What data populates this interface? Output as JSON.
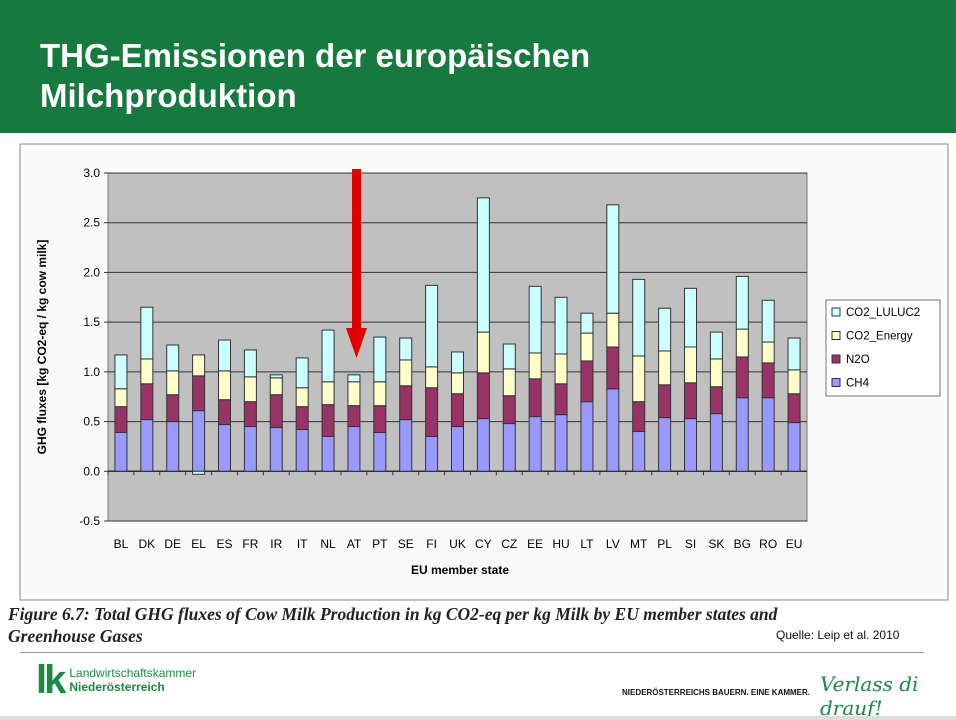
{
  "slide": {
    "title_line1": "THG-Emissionen der europäischen",
    "title_line2": "Milchproduktion",
    "caption_line1": "Figure 6.7: Total GHG fluxes of Cow Milk Production in kg CO2-eq per kg Milk by EU member states and",
    "caption_line2": "Greenhouse Gases",
    "source": "Quelle: Leip et al.  2010",
    "logo_line1": "Landwirtschaftskammer",
    "logo_line2": "Niederösterreich",
    "logo_mark": "lk",
    "slogan": "NIEDERÖSTERREICHS BAUERN. EINE KAMMER.",
    "tagline": "Verlass di drauf!"
  },
  "chart_data": {
    "type": "bar",
    "stacked": true,
    "xlabel": "EU member state",
    "ylabel": "GHG fluxes [kg CO2-eq / kg cow milk]",
    "ylim": [
      -0.5,
      3.0
    ],
    "yticks": [
      "3.0",
      "2.5",
      "2.0",
      "1.5",
      "1.0",
      "0.5",
      "0.0",
      "-0.5"
    ],
    "grid": true,
    "legend_position": "right",
    "highlight": {
      "category": "AT",
      "marker": "red down arrow"
    },
    "categories": [
      "BL",
      "DK",
      "DE",
      "EL",
      "ES",
      "FR",
      "IR",
      "IT",
      "NL",
      "AT",
      "PT",
      "SE",
      "FI",
      "UK",
      "CY",
      "CZ",
      "EE",
      "HU",
      "LT",
      "LV",
      "MT",
      "PL",
      "SI",
      "SK",
      "BG",
      "RO",
      "EU"
    ],
    "series": [
      {
        "name": "CH4",
        "color": "#9999ff",
        "values": [
          0.39,
          0.52,
          0.5,
          0.61,
          0.47,
          0.45,
          0.44,
          0.42,
          0.35,
          0.45,
          0.39,
          0.52,
          0.35,
          0.45,
          0.53,
          0.48,
          0.55,
          0.57,
          0.7,
          0.83,
          0.4,
          0.54,
          0.53,
          0.58,
          0.74,
          0.74,
          0.49
        ]
      },
      {
        "name": "N2O",
        "color": "#993366",
        "values": [
          0.26,
          0.36,
          0.27,
          0.35,
          0.25,
          0.25,
          0.33,
          0.23,
          0.32,
          0.21,
          0.27,
          0.34,
          0.49,
          0.33,
          0.46,
          0.28,
          0.38,
          0.31,
          0.41,
          0.42,
          0.3,
          0.33,
          0.36,
          0.27,
          0.41,
          0.35,
          0.29
        ]
      },
      {
        "name": "CO2_Energy",
        "color": "#ffffcc",
        "values": [
          0.18,
          0.25,
          0.24,
          0.21,
          0.29,
          0.25,
          0.17,
          0.19,
          0.23,
          0.24,
          0.24,
          0.26,
          0.21,
          0.21,
          0.41,
          0.27,
          0.26,
          0.3,
          0.28,
          0.34,
          0.46,
          0.34,
          0.36,
          0.28,
          0.28,
          0.21,
          0.24
        ]
      },
      {
        "name": "CO2_LULUC2",
        "color": "#ccffff",
        "values": [
          0.34,
          0.52,
          0.26,
          -0.03,
          0.31,
          0.27,
          0.03,
          0.3,
          0.52,
          0.07,
          0.45,
          0.22,
          0.82,
          0.21,
          1.35,
          0.25,
          0.67,
          0.57,
          0.2,
          1.09,
          0.77,
          0.43,
          0.59,
          0.27,
          0.53,
          0.42,
          0.32
        ]
      }
    ]
  }
}
